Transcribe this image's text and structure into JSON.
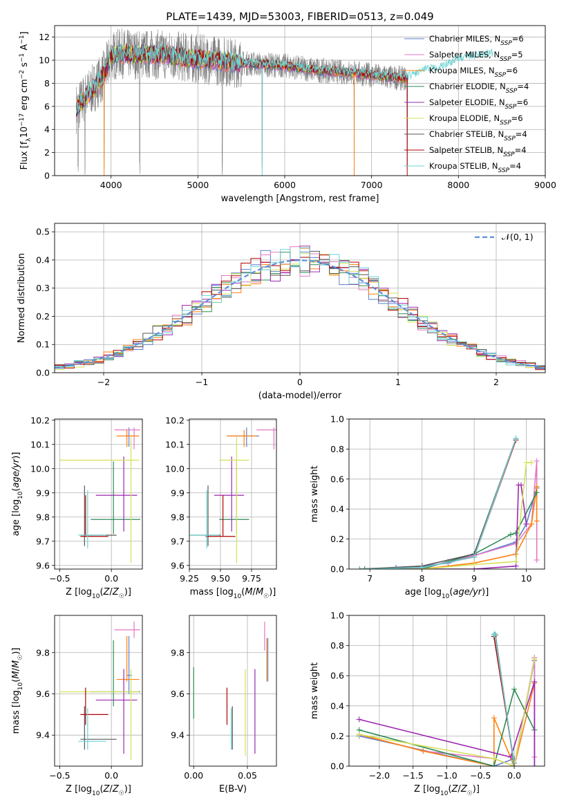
{
  "figure": {
    "title": "PLATE=1439, MJD=53003, FIBERID=0513, z=0.049"
  },
  "colors": {
    "chabrier_miles": "#5b7fd1",
    "salpeter_miles": "#e377c2",
    "kroupa_miles": "#ff7f0e",
    "chabrier_elodie": "#2e8b57",
    "salpeter_elodie": "#9c27b0",
    "kroupa_elodie": "#d4e157",
    "chabrier_stelib": "#555555",
    "salpeter_stelib": "#b00000",
    "kroupa_stelib": "#6dd3d3",
    "data": "#808080",
    "normal": "#5b8fd9"
  },
  "chart_data": [
    {
      "id": "spectrum",
      "type": "line",
      "xlabel": "wavelength [Angstrom, rest frame]",
      "ylabel": "Flux [f_λ10^-17 erg cm^-2 s^-1 A^-1]",
      "xlim": [
        3350,
        9000
      ],
      "ylim": [
        0,
        13
      ],
      "xticks": [
        4000,
        5000,
        6000,
        7000,
        8000,
        9000
      ],
      "yticks": [
        0,
        2,
        4,
        6,
        8,
        10,
        12
      ],
      "legend_position": "right",
      "legend": [
        {
          "key": "chabrier_miles",
          "label": "Chabrier MILES, N_SSP=6"
        },
        {
          "key": "salpeter_miles",
          "label": "Salpeter MILES, N_SSP=5"
        },
        {
          "key": "kroupa_miles",
          "label": "Kroupa MILES, N_SSP=6"
        },
        {
          "key": "chabrier_elodie",
          "label": "Chabrier ELODIE, N_SSP=4"
        },
        {
          "key": "salpeter_elodie",
          "label": "Salpeter ELODIE, N_SSP=6"
        },
        {
          "key": "kroupa_elodie",
          "label": "Kroupa ELODIE, N_SSP=6"
        },
        {
          "key": "chabrier_stelib",
          "label": "Chabrier STELIB, N_SSP=4"
        },
        {
          "key": "salpeter_stelib",
          "label": "Salpeter STELIB, N_SSP=4"
        },
        {
          "key": "kroupa_stelib",
          "label": "Kroupa STELIB, N_SSP=4"
        }
      ],
      "continuum": {
        "x": [
          3600,
          3700,
          3800,
          3900,
          4000,
          4100,
          4200,
          4400,
          4600,
          4800,
          5000,
          5200,
          5400,
          5600,
          5800,
          6000,
          6200,
          6400,
          6600,
          6800,
          7000,
          7200,
          7400,
          7600,
          7800,
          8000,
          8200,
          8400
        ],
        "y": [
          5.8,
          6.8,
          7.6,
          8.5,
          10.3,
          10.6,
          10.5,
          10.5,
          10.5,
          10.3,
          10.1,
          10.0,
          9.8,
          9.7,
          9.6,
          9.5,
          9.3,
          9.1,
          9.0,
          8.9,
          8.7,
          8.5,
          8.4,
          9.0,
          9.3,
          10.0,
          10.3,
          10.5
        ]
      },
      "data_range": [
        3600,
        7420
      ],
      "spikes": [
        3620,
        3700,
        3920,
        4330,
        5280,
        5740,
        6800,
        7410
      ]
    },
    {
      "id": "residuals",
      "type": "bar",
      "xlabel": "(data-model)/error",
      "ylabel": "Normed distribution",
      "xlim": [
        -2.5,
        2.5
      ],
      "ylim": [
        0,
        0.53
      ],
      "xticks": [
        -2,
        -1,
        0,
        1,
        2
      ],
      "yticks": [
        0,
        0.1,
        0.2,
        0.3,
        0.4,
        0.5
      ],
      "legend_position": "top-right",
      "normal_label": "𝒩(0, 1)",
      "bin_edges_start": -2.5,
      "bin_width": 0.1
    },
    {
      "id": "z_age",
      "type": "scatter",
      "xlabel": "Z [log10(Z/Z☉)]",
      "ylabel": "age [log10(age/yr)]",
      "xlim": [
        -0.55,
        0.3
      ],
      "ylim": [
        9.585,
        10.205
      ],
      "xticks": [
        -0.5,
        0.0
      ],
      "yticks": [
        9.6,
        9.7,
        9.8,
        9.9,
        10.0,
        10.1,
        10.2
      ]
    },
    {
      "id": "mass_age",
      "type": "scatter",
      "xlabel": "mass [log10(M/M☉)]",
      "ylabel": "",
      "xlim": [
        9.25,
        9.95
      ],
      "ylim": [
        9.585,
        10.205
      ],
      "xticks": [
        9.25,
        9.5,
        9.75
      ],
      "yticks": [
        9.6,
        9.7,
        9.8,
        9.9,
        10.0,
        10.1,
        10.2
      ]
    },
    {
      "id": "age_weight",
      "type": "line",
      "xlabel": "age [log10(age/yr)]",
      "ylabel": "mass weight",
      "xlim": [
        6.6,
        10.35
      ],
      "ylim": [
        0,
        1.0
      ],
      "xticks": [
        7,
        8,
        9,
        10
      ],
      "yticks": [
        0,
        0.2,
        0.4,
        0.6,
        0.8,
        1.0
      ]
    },
    {
      "id": "z_mass",
      "type": "scatter",
      "xlabel": "Z [log10(Z/Z☉)]",
      "ylabel": "mass [log10(M/M☉)]",
      "xlim": [
        -0.55,
        0.3
      ],
      "ylim": [
        9.25,
        9.98
      ],
      "xticks": [
        -0.5,
        0.0
      ],
      "yticks": [
        9.4,
        9.6,
        9.8
      ]
    },
    {
      "id": "ebv_mass",
      "type": "scatter",
      "xlabel": "E(B-V)",
      "ylabel": "",
      "xlim": [
        -0.004,
        0.077
      ],
      "ylim": [
        9.25,
        9.98
      ],
      "xticks": [
        0.0,
        0.05
      ],
      "yticks": [
        9.4,
        9.6,
        9.8
      ]
    },
    {
      "id": "z_weight",
      "type": "line",
      "xlabel": "Z [log10(Z/Z☉)]",
      "ylabel": "mass weight",
      "xlim": [
        -2.45,
        0.45
      ],
      "ylim": [
        0,
        1.0
      ],
      "xticks": [
        -2.0,
        -1.5,
        -1.0,
        -0.5,
        0.0
      ],
      "yticks": [
        0,
        0.2,
        0.4,
        0.6,
        0.8,
        1.0
      ]
    }
  ],
  "models": [
    {
      "key": "chabrier_miles",
      "Z": 0.17,
      "Zerr": [
        0.15,
        0.2
      ],
      "age": 10.135,
      "ageerr": [
        10.09,
        10.17
      ],
      "mass": 9.69,
      "masserr": [
        9.6,
        9.88
      ],
      "ebv": 0.069,
      "ebverr": [
        9.66,
        9.87
      ],
      "ages": [
        6.8,
        7.5,
        8.0,
        8.5,
        9.0,
        9.8,
        10.0,
        10.2
      ],
      "w_age": [
        0.0,
        0.01,
        0.02,
        0.04,
        0.09,
        0.18,
        0.3,
        0.54
      ],
      "Zs": [
        -2.3,
        -0.3,
        0.0,
        0.0,
        0.3,
        0.3
      ],
      "w_Z": [
        0.2,
        0.0,
        0.05,
        0.0,
        0.7,
        0.0
      ]
    },
    {
      "key": "salpeter_miles",
      "Z": 0.22,
      "Zerr": [
        0.03,
        0.28
      ],
      "age": 10.16,
      "ageerr": [
        10.08,
        10.17
      ],
      "mass": 9.91,
      "masserr": [
        9.87,
        9.95
      ],
      "ebv": 0.066,
      "ebverr": [
        9.81,
        9.95
      ],
      "ages": [
        6.9,
        8.0,
        8.5,
        9.0,
        9.8,
        10.1,
        10.2,
        10.2
      ],
      "w_age": [
        0.0,
        0.0,
        0.05,
        0.09,
        0.17,
        0.3,
        0.72,
        0.06
      ],
      "Zs": [
        -2.3,
        -1.35,
        -0.3,
        0.0,
        0.3,
        0.3
      ],
      "w_Z": [
        0.21,
        0.1,
        0.05,
        0.0,
        0.72,
        0.06
      ]
    },
    {
      "key": "kroupa_miles",
      "Z": 0.15,
      "Zerr": [
        0.05,
        0.27
      ],
      "age": 10.135,
      "ageerr": [
        10.09,
        10.16
      ],
      "mass": 9.67,
      "masserr": [
        9.66,
        9.88
      ],
      "ebv": 0.068,
      "ebverr": [
        9.66,
        9.87
      ],
      "ages": [
        6.8,
        8.0,
        9.0,
        9.8,
        10.1,
        10.2,
        10.2
      ],
      "w_age": [
        0.0,
        0.0,
        0.04,
        0.1,
        0.3,
        0.55,
        0.32
      ],
      "Zs": [
        -2.3,
        -1.35,
        -0.3,
        -0.3,
        0.0,
        0.3
      ],
      "w_Z": [
        0.21,
        0.1,
        0.0,
        0.32,
        0.0,
        0.55
      ]
    },
    {
      "key": "chabrier_elodie",
      "Z": 0.02,
      "Zerr": [
        -0.2,
        0.28
      ],
      "age": 9.79,
      "ageerr": [
        9.73,
        10.03
      ],
      "mass": 9.61,
      "masserr": [
        9.54,
        9.86
      ],
      "ebv": 0.0,
      "ebverr": [
        9.48,
        9.73
      ],
      "ages": [
        6.9,
        8.0,
        9.0,
        9.7,
        9.8,
        10.2
      ],
      "w_age": [
        0.0,
        0.0,
        0.1,
        0.23,
        0.24,
        0.51
      ],
      "Zs": [
        -2.3,
        -0.3,
        0.0,
        0.3
      ],
      "w_Z": [
        0.24,
        0.0,
        0.51,
        0.24
      ]
    },
    {
      "key": "salpeter_elodie",
      "Z": 0.12,
      "Zerr": [
        -0.15,
        0.25
      ],
      "age": 9.89,
      "ageerr": [
        9.74,
        10.05
      ],
      "mass": 9.57,
      "masserr": [
        9.31,
        9.72
      ],
      "ebv": 0.057,
      "ebverr": [
        9.31,
        9.72
      ],
      "ages": [
        6.8,
        8.0,
        9.0,
        9.8,
        9.85,
        9.9,
        10.0
      ],
      "w_age": [
        0.0,
        0.0,
        0.0,
        0.02,
        0.56,
        0.56,
        0.3
      ],
      "Zs": [
        -2.3,
        -0.05,
        0.3,
        0.3
      ],
      "w_Z": [
        0.31,
        0.06,
        0.56,
        0.0
      ]
    },
    {
      "key": "kroupa_elodie",
      "Z": 0.19,
      "Zerr": [
        -0.5,
        0.27
      ],
      "age": 10.035,
      "ageerr": [
        9.61,
        10.13
      ],
      "mass": 9.61,
      "masserr": [
        9.28,
        9.72
      ],
      "ebv": 0.048,
      "ebverr": [
        9.3,
        9.72
      ],
      "ages": [
        6.8,
        8.0,
        9.0,
        9.8,
        10.0,
        10.1
      ],
      "w_age": [
        0.0,
        0.0,
        0.03,
        0.05,
        0.71,
        0.71
      ],
      "Zs": [
        -2.3,
        -0.3,
        0.0,
        0.3
      ],
      "w_Z": [
        0.21,
        0.05,
        0.0,
        0.71
      ]
    },
    {
      "key": "chabrier_stelib",
      "Z": -0.26,
      "Zerr": [
        -0.3,
        0.05
      ],
      "age": 9.725,
      "ageerr": [
        9.68,
        9.93
      ],
      "mass": 9.38,
      "masserr": [
        9.33,
        9.54
      ],
      "ebv": 0.036,
      "ebverr": [
        9.33,
        9.54
      ],
      "ages": [
        6.8,
        8.0,
        9.0,
        9.8,
        9.8
      ],
      "w_age": [
        0.0,
        0.02,
        0.1,
        0.87,
        0.87
      ],
      "Zs": [
        -0.3,
        -0.28,
        0.0
      ],
      "w_Z": [
        0.87,
        0.87,
        0.0
      ]
    },
    {
      "key": "salpeter_stelib",
      "Z": -0.25,
      "Zerr": [
        -0.3,
        -0.03
      ],
      "age": 9.72,
      "ageerr": [
        9.72,
        9.89
      ],
      "mass": 9.5,
      "masserr": [
        9.45,
        9.63
      ],
      "ebv": 0.031,
      "ebverr": [
        9.45,
        9.63
      ],
      "ages": [
        6.8,
        8.0,
        9.0,
        9.8
      ],
      "w_age": [
        0.0,
        0.01,
        0.08,
        0.86
      ],
      "Zs": [
        -0.3,
        0.0,
        0.0
      ],
      "w_Z": [
        0.86,
        0.02,
        0.0
      ]
    },
    {
      "key": "kroupa_stelib",
      "Z": -0.23,
      "Zerr": [
        -0.32,
        -0.05
      ],
      "age": 9.725,
      "ageerr": [
        9.67,
        9.91
      ],
      "mass": 9.37,
      "masserr": [
        9.33,
        9.53
      ],
      "ebv": 0.035,
      "ebverr": [
        9.33,
        9.53
      ],
      "ages": [
        6.8,
        8.0,
        9.0,
        9.8,
        9.8
      ],
      "w_age": [
        0.0,
        0.01,
        0.08,
        0.87,
        0.87
      ],
      "Zs": [
        -0.3,
        -0.29,
        0.0
      ],
      "w_Z": [
        0.87,
        0.88,
        0.02
      ]
    }
  ]
}
